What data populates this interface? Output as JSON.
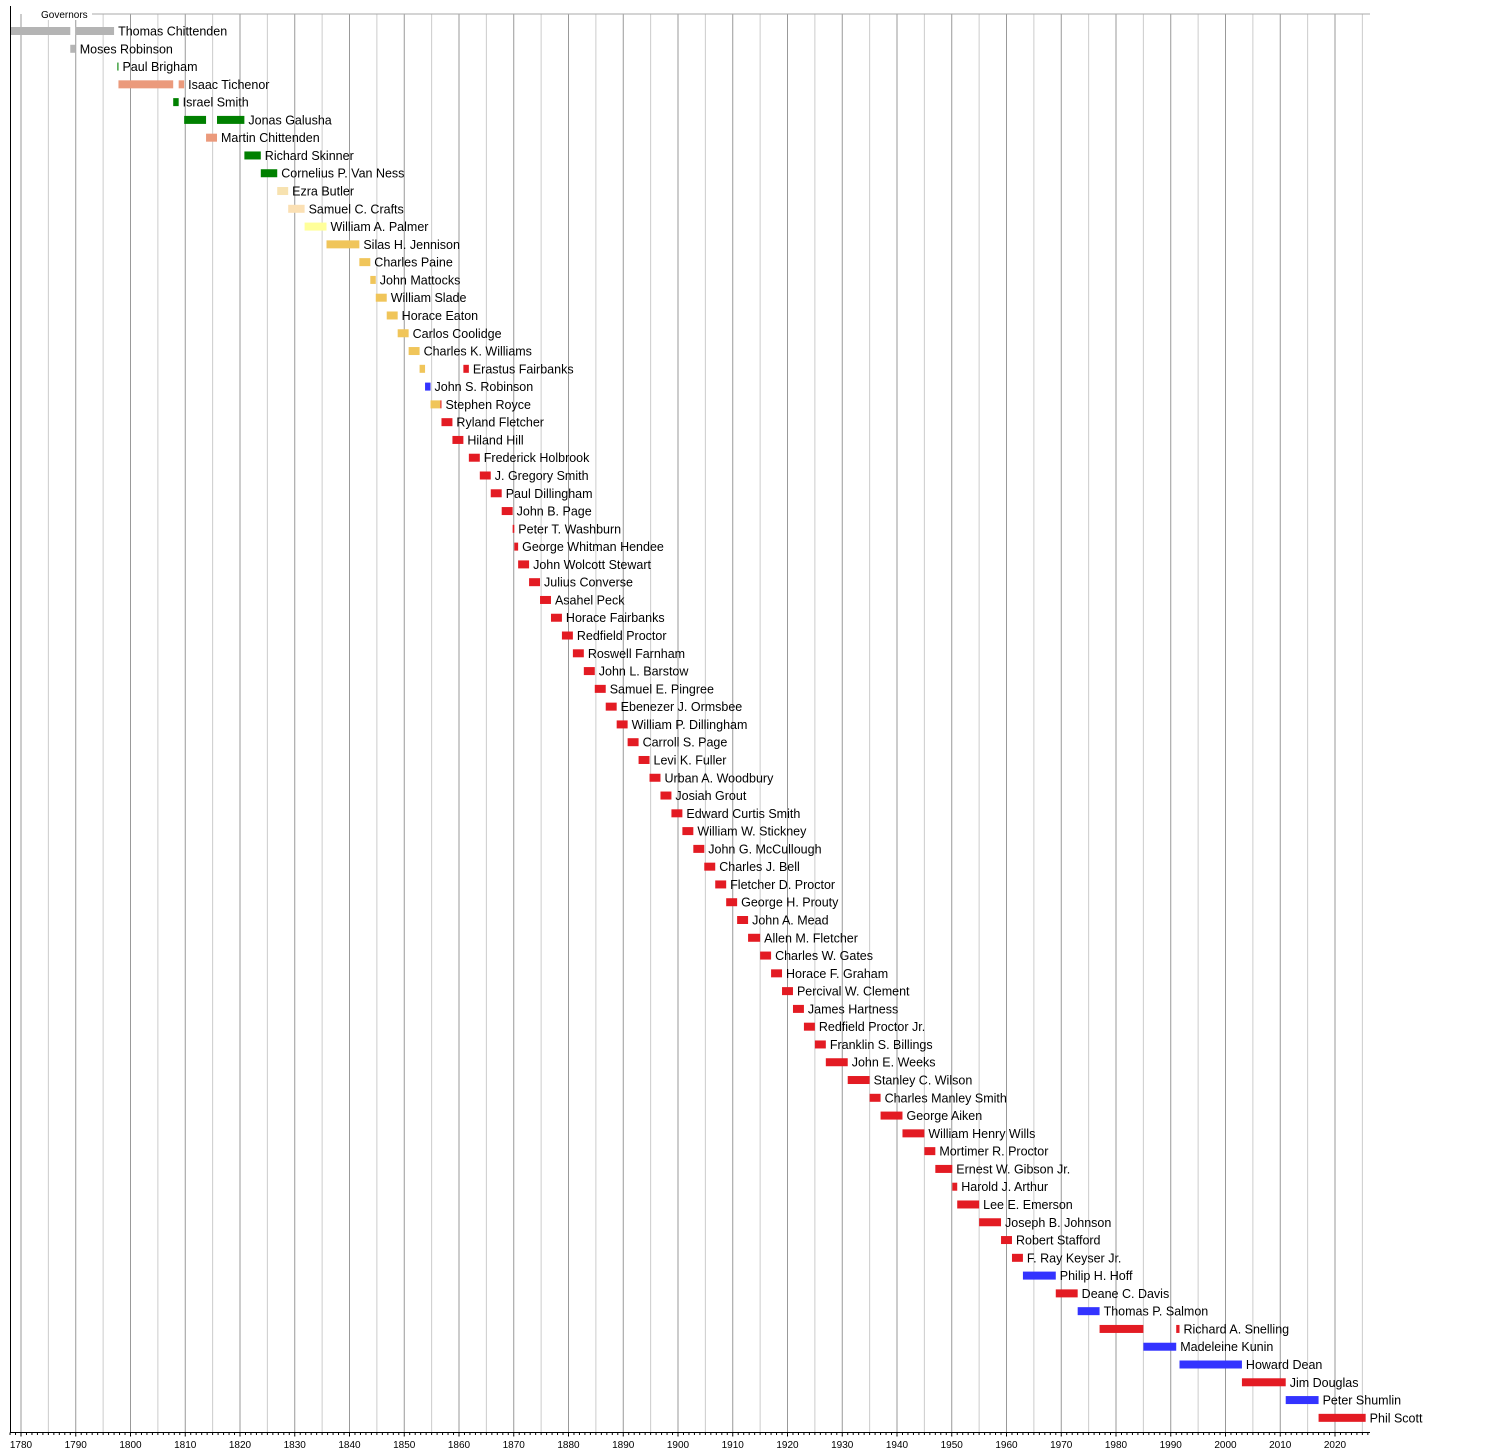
{
  "chart_data": {
    "type": "timeline",
    "title": "Governors",
    "xlim": [
      1778,
      2026.4
    ],
    "grid": true,
    "x_ticks": [
      1780,
      1790,
      1800,
      1810,
      1820,
      1830,
      1840,
      1850,
      1860,
      1870,
      1880,
      1890,
      1900,
      1910,
      1920,
      1930,
      1940,
      1950,
      1960,
      1970,
      1980,
      1990,
      2000,
      2010,
      2020
    ],
    "colors": {
      "gray": "#b4b4b4",
      "salmon": "#eb9a7c",
      "green": "#008000",
      "wheat": "#f7e2b0",
      "peach": "#fbe0b4",
      "yellow": "#ffff9a",
      "gold": "#f0c55a",
      "red": "#e31b23",
      "blue": "#3333ff"
    },
    "rows": [
      {
        "name": "Thomas Chittenden",
        "segments": [
          [
            1778,
            1789,
            "gray"
          ],
          [
            1790,
            1797,
            "gray"
          ]
        ]
      },
      {
        "name": "Moses Robinson",
        "segments": [
          [
            1789,
            1790,
            "gray"
          ]
        ]
      },
      {
        "name": "Paul Brigham",
        "segments": [
          [
            1797.6,
            1797.8,
            "green"
          ]
        ]
      },
      {
        "name": "Isaac Tichenor",
        "segments": [
          [
            1797.8,
            1807.8,
            "salmon"
          ],
          [
            1808.8,
            1809.8,
            "salmon"
          ]
        ]
      },
      {
        "name": "Israel Smith",
        "segments": [
          [
            1807.8,
            1808.8,
            "green"
          ]
        ]
      },
      {
        "name": "Jonas Galusha",
        "segments": [
          [
            1809.8,
            1813.8,
            "green"
          ],
          [
            1815.8,
            1820.8,
            "green"
          ]
        ]
      },
      {
        "name": "Martin Chittenden",
        "segments": [
          [
            1813.8,
            1815.8,
            "salmon"
          ]
        ]
      },
      {
        "name": "Richard Skinner",
        "segments": [
          [
            1820.8,
            1823.8,
            "green"
          ]
        ]
      },
      {
        "name": "Cornelius P. Van Ness",
        "segments": [
          [
            1823.8,
            1826.8,
            "green"
          ]
        ]
      },
      {
        "name": "Ezra Butler",
        "segments": [
          [
            1826.8,
            1828.8,
            "wheat"
          ]
        ]
      },
      {
        "name": "Samuel C. Crafts",
        "segments": [
          [
            1828.8,
            1831.8,
            "peach"
          ]
        ]
      },
      {
        "name": "William A. Palmer",
        "segments": [
          [
            1831.8,
            1835.8,
            "yellow"
          ]
        ]
      },
      {
        "name": "Silas H. Jennison",
        "segments": [
          [
            1835.8,
            1841.8,
            "gold"
          ]
        ]
      },
      {
        "name": "Charles Paine",
        "segments": [
          [
            1841.8,
            1843.8,
            "gold"
          ]
        ]
      },
      {
        "name": "John Mattocks",
        "segments": [
          [
            1843.8,
            1844.8,
            "gold"
          ]
        ]
      },
      {
        "name": "William Slade",
        "segments": [
          [
            1844.8,
            1846.8,
            "gold"
          ]
        ]
      },
      {
        "name": "Horace Eaton",
        "segments": [
          [
            1846.8,
            1848.8,
            "gold"
          ]
        ]
      },
      {
        "name": "Carlos Coolidge",
        "segments": [
          [
            1848.8,
            1850.8,
            "gold"
          ]
        ]
      },
      {
        "name": "Charles K. Williams",
        "segments": [
          [
            1850.8,
            1852.8,
            "gold"
          ]
        ]
      },
      {
        "name": "Erastus Fairbanks",
        "segments": [
          [
            1852.8,
            1853.8,
            "gold"
          ],
          [
            1860.8,
            1861.8,
            "red"
          ]
        ]
      },
      {
        "name": "John S. Robinson",
        "segments": [
          [
            1853.8,
            1854.8,
            "blue"
          ]
        ]
      },
      {
        "name": "Stephen Royce",
        "segments": [
          [
            1854.8,
            1856.6,
            "gold"
          ],
          [
            1856.6,
            1856.8,
            "red"
          ]
        ]
      },
      {
        "name": "Ryland Fletcher",
        "segments": [
          [
            1856.8,
            1858.8,
            "red"
          ]
        ]
      },
      {
        "name": "Hiland Hill",
        "segments": [
          [
            1858.8,
            1860.8,
            "red"
          ]
        ]
      },
      {
        "name": "Frederick Holbrook",
        "segments": [
          [
            1861.8,
            1863.8,
            "red"
          ]
        ]
      },
      {
        "name": "J. Gregory Smith",
        "segments": [
          [
            1863.8,
            1865.8,
            "red"
          ]
        ]
      },
      {
        "name": "Paul Dillingham",
        "segments": [
          [
            1865.8,
            1867.8,
            "red"
          ]
        ]
      },
      {
        "name": "John B. Page",
        "segments": [
          [
            1867.8,
            1869.8,
            "red"
          ]
        ]
      },
      {
        "name": "Peter T. Washburn",
        "segments": [
          [
            1869.8,
            1870.1,
            "red"
          ]
        ]
      },
      {
        "name": "George Whitman Hendee",
        "segments": [
          [
            1870.1,
            1870.8,
            "red"
          ]
        ]
      },
      {
        "name": "John Wolcott Stewart",
        "segments": [
          [
            1870.8,
            1872.8,
            "red"
          ]
        ]
      },
      {
        "name": "Julius Converse",
        "segments": [
          [
            1872.8,
            1874.8,
            "red"
          ]
        ]
      },
      {
        "name": "Asahel Peck",
        "segments": [
          [
            1874.8,
            1876.8,
            "red"
          ]
        ]
      },
      {
        "name": "Horace Fairbanks",
        "segments": [
          [
            1876.8,
            1878.8,
            "red"
          ]
        ]
      },
      {
        "name": "Redfield Proctor",
        "segments": [
          [
            1878.8,
            1880.8,
            "red"
          ]
        ]
      },
      {
        "name": "Roswell Farnham",
        "segments": [
          [
            1880.8,
            1882.8,
            "red"
          ]
        ]
      },
      {
        "name": "John L. Barstow",
        "segments": [
          [
            1882.8,
            1884.8,
            "red"
          ]
        ]
      },
      {
        "name": "Samuel E. Pingree",
        "segments": [
          [
            1884.8,
            1886.8,
            "red"
          ]
        ]
      },
      {
        "name": "Ebenezer J. Ormsbee",
        "segments": [
          [
            1886.8,
            1888.8,
            "red"
          ]
        ]
      },
      {
        "name": "William P. Dillingham",
        "segments": [
          [
            1888.8,
            1890.8,
            "red"
          ]
        ]
      },
      {
        "name": "Carroll S. Page",
        "segments": [
          [
            1890.8,
            1892.8,
            "red"
          ]
        ]
      },
      {
        "name": "Levi K. Fuller",
        "segments": [
          [
            1892.8,
            1894.8,
            "red"
          ]
        ]
      },
      {
        "name": "Urban A. Woodbury",
        "segments": [
          [
            1894.8,
            1896.8,
            "red"
          ]
        ]
      },
      {
        "name": "Josiah Grout",
        "segments": [
          [
            1896.8,
            1898.8,
            "red"
          ]
        ]
      },
      {
        "name": "Edward Curtis Smith",
        "segments": [
          [
            1898.8,
            1900.8,
            "red"
          ]
        ]
      },
      {
        "name": "William W. Stickney",
        "segments": [
          [
            1900.8,
            1902.8,
            "red"
          ]
        ]
      },
      {
        "name": "John G. McCullough",
        "segments": [
          [
            1902.8,
            1904.8,
            "red"
          ]
        ]
      },
      {
        "name": "Charles J. Bell",
        "segments": [
          [
            1904.8,
            1906.8,
            "red"
          ]
        ]
      },
      {
        "name": "Fletcher D. Proctor",
        "segments": [
          [
            1906.8,
            1908.8,
            "red"
          ]
        ]
      },
      {
        "name": "George H. Prouty",
        "segments": [
          [
            1908.8,
            1910.8,
            "red"
          ]
        ]
      },
      {
        "name": "John A. Mead",
        "segments": [
          [
            1910.8,
            1912.8,
            "red"
          ]
        ]
      },
      {
        "name": "Allen M. Fletcher",
        "segments": [
          [
            1912.8,
            1915,
            "red"
          ]
        ]
      },
      {
        "name": "Charles W. Gates",
        "segments": [
          [
            1915,
            1917,
            "red"
          ]
        ]
      },
      {
        "name": "Horace F. Graham",
        "segments": [
          [
            1917,
            1919,
            "red"
          ]
        ]
      },
      {
        "name": "Percival W. Clement",
        "segments": [
          [
            1919,
            1921,
            "red"
          ]
        ]
      },
      {
        "name": "James Hartness",
        "segments": [
          [
            1921,
            1923,
            "red"
          ]
        ]
      },
      {
        "name": "Redfield Proctor Jr.",
        "segments": [
          [
            1923,
            1925,
            "red"
          ]
        ]
      },
      {
        "name": "Franklin S. Billings",
        "segments": [
          [
            1925,
            1927,
            "red"
          ]
        ]
      },
      {
        "name": "John E. Weeks",
        "segments": [
          [
            1927,
            1931,
            "red"
          ]
        ]
      },
      {
        "name": "Stanley C. Wilson",
        "segments": [
          [
            1931,
            1935,
            "red"
          ]
        ]
      },
      {
        "name": "Charles Manley Smith",
        "segments": [
          [
            1935,
            1937,
            "red"
          ]
        ]
      },
      {
        "name": "George Aiken",
        "segments": [
          [
            1937,
            1941,
            "red"
          ]
        ]
      },
      {
        "name": "William Henry Wills",
        "segments": [
          [
            1941,
            1945,
            "red"
          ]
        ]
      },
      {
        "name": "Mortimer R. Proctor",
        "segments": [
          [
            1945,
            1947,
            "red"
          ]
        ]
      },
      {
        "name": "Ernest W. Gibson Jr.",
        "segments": [
          [
            1947,
            1950.1,
            "red"
          ]
        ]
      },
      {
        "name": "Harold J. Arthur",
        "segments": [
          [
            1950.1,
            1951,
            "red"
          ]
        ]
      },
      {
        "name": "Lee E. Emerson",
        "segments": [
          [
            1951,
            1955,
            "red"
          ]
        ]
      },
      {
        "name": "Joseph B. Johnson",
        "segments": [
          [
            1955,
            1959,
            "red"
          ]
        ]
      },
      {
        "name": "Robert Stafford",
        "segments": [
          [
            1959,
            1961,
            "red"
          ]
        ]
      },
      {
        "name": "F. Ray Keyser Jr.",
        "segments": [
          [
            1961,
            1963,
            "red"
          ]
        ]
      },
      {
        "name": "Philip H. Hoff",
        "segments": [
          [
            1963,
            1969,
            "blue"
          ]
        ]
      },
      {
        "name": "Deane C. Davis",
        "segments": [
          [
            1969,
            1973,
            "red"
          ]
        ]
      },
      {
        "name": "Thomas P. Salmon",
        "segments": [
          [
            1973,
            1977,
            "blue"
          ]
        ]
      },
      {
        "name": "Richard A. Snelling",
        "segments": [
          [
            1977,
            1985,
            "red"
          ],
          [
            1991,
            1991.6,
            "red"
          ]
        ]
      },
      {
        "name": "Madeleine Kunin",
        "segments": [
          [
            1985,
            1991,
            "blue"
          ]
        ]
      },
      {
        "name": "Howard Dean",
        "segments": [
          [
            1991.6,
            2003,
            "blue"
          ]
        ]
      },
      {
        "name": "Jim Douglas",
        "segments": [
          [
            2003,
            2011,
            "red"
          ]
        ]
      },
      {
        "name": "Peter Shumlin",
        "segments": [
          [
            2011,
            2017,
            "blue"
          ]
        ]
      },
      {
        "name": "Phil Scott",
        "segments": [
          [
            2017,
            2025.6,
            "red"
          ]
        ]
      }
    ]
  }
}
